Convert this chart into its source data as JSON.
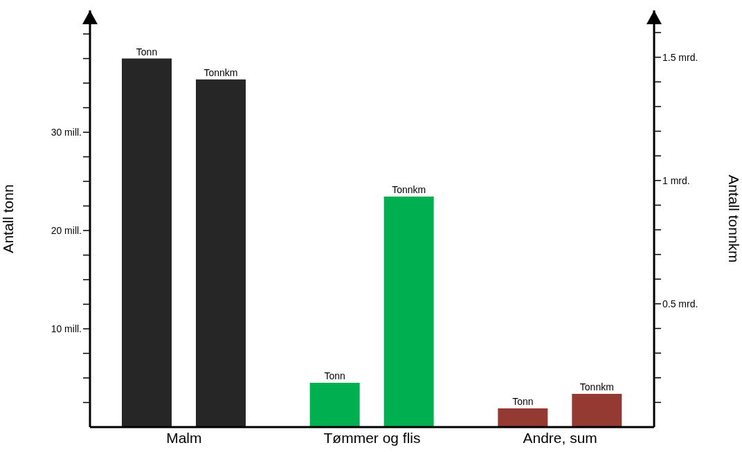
{
  "chart_data": {
    "type": "bar",
    "ylabel": "Antall tonn",
    "y2label": "Antall tonnkm",
    "categories": [
      "Malm",
      "Tømmer og flis",
      "Andre, sum"
    ],
    "series": [
      {
        "name": "Tonn",
        "axis": "y",
        "colors": [
          "#262626",
          "#00b050",
          "#943a32"
        ],
        "values": [
          37.5,
          4.5,
          1.9
        ]
      },
      {
        "name": "Tonnkm",
        "axis": "y2",
        "colors": [
          "#262626",
          "#00b050",
          "#943a32"
        ],
        "values": [
          1.41,
          0.935,
          0.135
        ]
      }
    ],
    "ylim": [
      0,
      42.4
    ],
    "yticks": [
      {
        "value": 2.5,
        "label": null
      },
      {
        "value": 5,
        "label": null
      },
      {
        "value": 7.5,
        "label": null
      },
      {
        "value": 10,
        "label": "10 mill."
      },
      {
        "value": 12.5,
        "label": null
      },
      {
        "value": 15,
        "label": null
      },
      {
        "value": 17.5,
        "label": null
      },
      {
        "value": 20,
        "label": "20 mill."
      },
      {
        "value": 22.5,
        "label": null
      },
      {
        "value": 25,
        "label": null
      },
      {
        "value": 27.5,
        "label": null
      },
      {
        "value": 30,
        "label": "30 mill."
      },
      {
        "value": 32.5,
        "label": null
      },
      {
        "value": 35,
        "label": null
      },
      {
        "value": 37.5,
        "label": null
      },
      {
        "value": 40,
        "label": null
      }
    ],
    "y2lim": [
      0,
      1.69
    ],
    "y2ticks": [
      {
        "value": 0.1,
        "label": null
      },
      {
        "value": 0.2,
        "label": null
      },
      {
        "value": 0.3,
        "label": null
      },
      {
        "value": 0.4,
        "label": null
      },
      {
        "value": 0.5,
        "label": "0.5 mrd."
      },
      {
        "value": 0.6,
        "label": null
      },
      {
        "value": 0.7,
        "label": null
      },
      {
        "value": 0.8,
        "label": null
      },
      {
        "value": 0.9,
        "label": null
      },
      {
        "value": 1,
        "label": "1 mrd."
      },
      {
        "value": 1.1,
        "label": null
      },
      {
        "value": 1.2,
        "label": null
      },
      {
        "value": 1.3,
        "label": null
      },
      {
        "value": 1.4,
        "label": null
      },
      {
        "value": 1.5,
        "label": "1.5 mrd."
      },
      {
        "value": 1.6,
        "label": null
      }
    ],
    "grid": false,
    "legend": false
  }
}
